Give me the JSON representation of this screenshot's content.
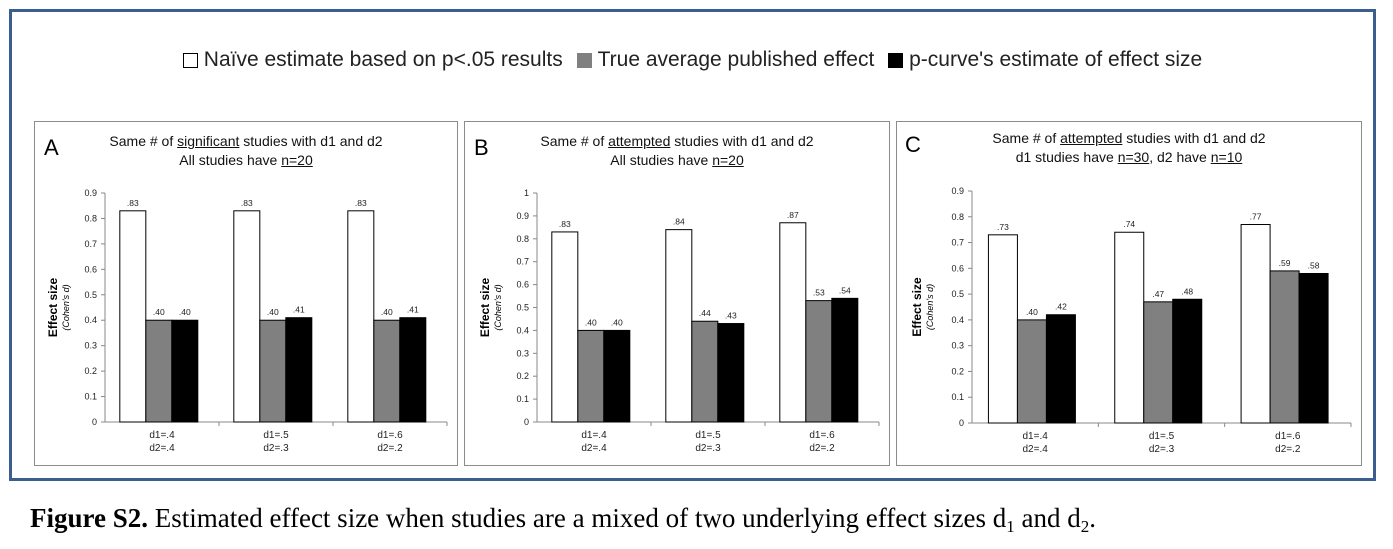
{
  "legend": {
    "items": [
      {
        "label": "Naïve estimate based on p<.05 results",
        "color": "#ffffff"
      },
      {
        "label": "True average published effect",
        "color": "#808080"
      },
      {
        "label": "p-curve's estimate of effect size",
        "color": "#000000"
      }
    ]
  },
  "chart_data": [
    {
      "type": "bar",
      "panel": "A",
      "title_lines": [
        [
          {
            "t": "Same # of "
          },
          {
            "t": "significant",
            "u": true
          },
          {
            "t": " studies  with d1 and d2"
          }
        ],
        [
          {
            "t": "All studies have "
          },
          {
            "t": "n=20",
            "u": true
          }
        ]
      ],
      "ylabel": "Effect size",
      "ylabel_sub": "(Cohen's d)",
      "ylim": [
        0,
        0.9
      ],
      "yticks": [
        "0",
        "0.1",
        "0.2",
        "0.3",
        "0.4",
        "0.5",
        "0.6",
        "0.7",
        "0.8",
        "0.9"
      ],
      "categories": [
        [
          "d1=.4",
          "d2=.4"
        ],
        [
          "d1=.5",
          "d2=.3"
        ],
        [
          "d1=.6",
          "d2=.2"
        ]
      ],
      "series": [
        {
          "color": "#ffffff",
          "values": [
            0.83,
            0.83,
            0.83
          ],
          "labels": [
            ".83",
            ".83",
            ".83"
          ]
        },
        {
          "color": "#808080",
          "values": [
            0.4,
            0.4,
            0.4
          ],
          "labels": [
            ".40",
            ".40",
            ".40"
          ]
        },
        {
          "color": "#000000",
          "values": [
            0.4,
            0.41,
            0.41
          ],
          "labels": [
            ".40",
            ".41",
            ".41"
          ]
        }
      ]
    },
    {
      "type": "bar",
      "panel": "B",
      "title_lines": [
        [
          {
            "t": "Same # of "
          },
          {
            "t": "attempted",
            "u": true
          },
          {
            "t": " studies  with d1 and d2"
          }
        ],
        [
          {
            "t": "All studies have "
          },
          {
            "t": "n=20",
            "u": true
          }
        ]
      ],
      "ylabel": "Effect size",
      "ylabel_sub": "(Cohen's d)",
      "ylim": [
        0,
        1
      ],
      "yticks": [
        "0",
        "0.1",
        "0.2",
        "0.3",
        "0.4",
        "0.5",
        "0.6",
        "0.7",
        "0.8",
        "0.9",
        "1"
      ],
      "categories": [
        [
          "d1=.4",
          "d2=.4"
        ],
        [
          "d1=.5",
          "d2=.3"
        ],
        [
          "d1=.6",
          "d2=.2"
        ]
      ],
      "series": [
        {
          "color": "#ffffff",
          "values": [
            0.83,
            0.84,
            0.87
          ],
          "labels": [
            ".83",
            ".84",
            ".87"
          ]
        },
        {
          "color": "#808080",
          "values": [
            0.4,
            0.44,
            0.53
          ],
          "labels": [
            ".40",
            ".44",
            ".53"
          ]
        },
        {
          "color": "#000000",
          "values": [
            0.4,
            0.43,
            0.54
          ],
          "labels": [
            ".40",
            ".43",
            ".54"
          ]
        }
      ]
    },
    {
      "type": "bar",
      "panel": "C",
      "title_lines": [
        [
          {
            "t": "Same # of "
          },
          {
            "t": "attempted",
            "u": true
          },
          {
            "t": " studies  with d1 and d2"
          }
        ],
        [
          {
            "t": "d1 studies have "
          },
          {
            "t": "n=30",
            "u": true
          },
          {
            "t": ", d2 have "
          },
          {
            "t": "n=10",
            "u": true
          }
        ]
      ],
      "ylabel": "Effect size",
      "ylabel_sub": "(Cohen's d)",
      "ylim": [
        0,
        0.9
      ],
      "yticks": [
        "0",
        "0.1",
        "0.2",
        "0.3",
        "0.4",
        "0.5",
        "0.6",
        "0.7",
        "0.8",
        "0.9"
      ],
      "categories": [
        [
          "d1=.4",
          "d2=.4"
        ],
        [
          "d1=.5",
          "d2=.3"
        ],
        [
          "d1=.6",
          "d2=.2"
        ]
      ],
      "series": [
        {
          "color": "#ffffff",
          "values": [
            0.73,
            0.74,
            0.77
          ],
          "labels": [
            ".73",
            ".74",
            ".77"
          ]
        },
        {
          "color": "#808080",
          "values": [
            0.4,
            0.47,
            0.59
          ],
          "labels": [
            ".40",
            ".47",
            ".59"
          ]
        },
        {
          "color": "#000000",
          "values": [
            0.42,
            0.48,
            0.58
          ],
          "labels": [
            ".42",
            ".48",
            ".58"
          ]
        }
      ]
    }
  ],
  "caption": {
    "bold": "Figure S2.",
    "text": " Estimated effect size when studies are a mixed of two underlying effect sizes d",
    "sub1": "1",
    "mid": " and d",
    "sub2": "2",
    "end": "."
  }
}
